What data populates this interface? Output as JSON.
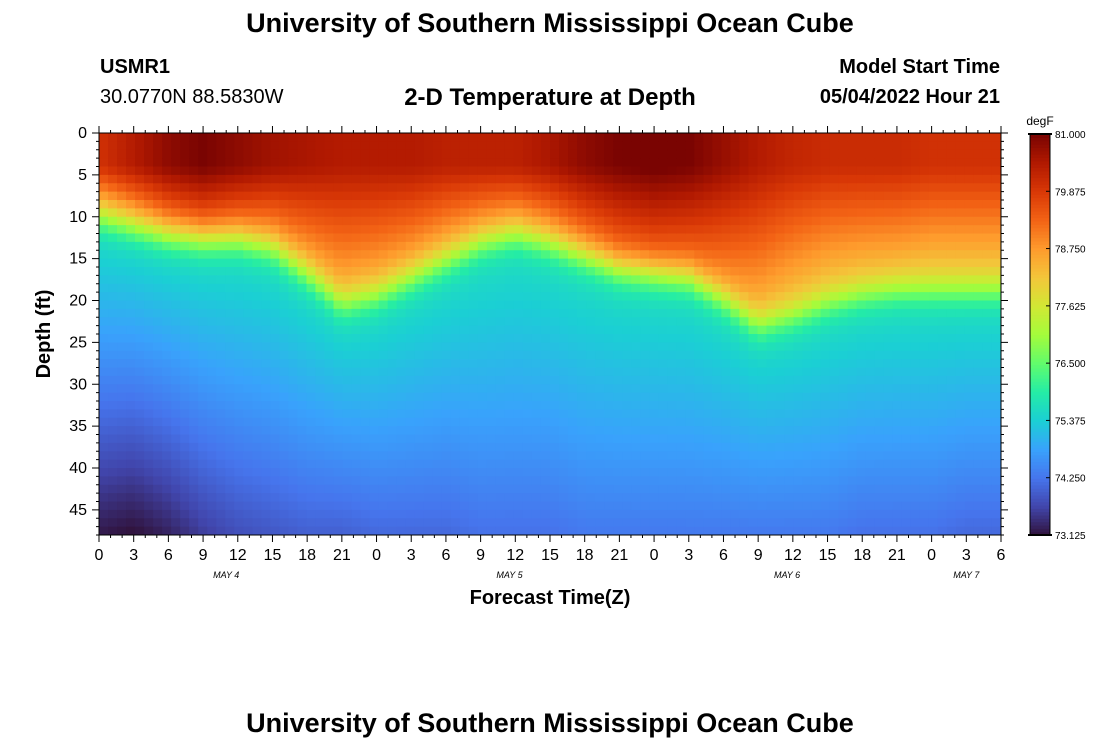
{
  "header": {
    "site_title": "University of Southern Mississippi Ocean Cube",
    "station_id": "USMR1",
    "station_coords": "30.0770N  88.5830W",
    "chart_title": "2-D Temperature at Depth",
    "start_label": "Model Start Time",
    "start_value": "05/04/2022 Hour 21"
  },
  "footer": {
    "site_title": "University of Southern Mississippi Ocean Cube"
  },
  "chart_data": {
    "type": "heatmap",
    "title": "2-D Temperature at Depth",
    "xlabel": "Forecast Time(Z)",
    "ylabel": "Depth (ft)",
    "x_range_hours": [
      0,
      78
    ],
    "y_range_ft": [
      0,
      48
    ],
    "x_tick_labels": [
      "0",
      "3",
      "6",
      "9",
      "12",
      "15",
      "18",
      "21",
      "0",
      "3",
      "6",
      "9",
      "12",
      "15",
      "18",
      "21",
      "0",
      "3",
      "6",
      "9",
      "12",
      "15",
      "18",
      "21",
      "0",
      "3",
      "6"
    ],
    "date_labels": [
      {
        "label": "MAY 4",
        "hour": 11
      },
      {
        "label": "MAY 5",
        "hour": 35.5
      },
      {
        "label": "MAY 6",
        "hour": 59.5
      },
      {
        "label": "MAY 7",
        "hour": 75
      }
    ],
    "y_ticks": [
      0,
      5,
      10,
      15,
      20,
      25,
      30,
      35,
      40,
      45
    ],
    "colorbar": {
      "units": "degF",
      "min": 73.125,
      "max": 81.0,
      "tick_labels": [
        "81.000",
        "79.875",
        "78.750",
        "77.625",
        "76.500",
        "75.375",
        "74.250",
        "73.125"
      ],
      "colors": [
        "#30123b",
        "#4145ab",
        "#4675ed",
        "#39a2fc",
        "#1bcfd4",
        "#24eca6",
        "#61fc6c",
        "#a4fc3b",
        "#d1e834",
        "#f3c63a",
        "#fe9b2d",
        "#f36315",
        "#d93806",
        "#b11901",
        "#7a0402"
      ]
    },
    "thermocline_depth_ft": {
      "hours": [
        0,
        3,
        6,
        9,
        12,
        15,
        18,
        21,
        24,
        27,
        30,
        33,
        36,
        39,
        42,
        45,
        48,
        51,
        54,
        57,
        60,
        63,
        66,
        69,
        72,
        75,
        78
      ],
      "values": [
        10.5,
        11.5,
        12.5,
        13,
        13,
        14,
        17,
        20.5,
        19.5,
        17.5,
        15.5,
        13.5,
        12.5,
        13.5,
        15,
        16.5,
        17,
        17.5,
        20,
        23,
        22,
        20.5,
        19.5,
        19,
        19,
        19,
        19
      ]
    },
    "surface_temperature_degF": {
      "hours": [
        0,
        3,
        6,
        9,
        12,
        15,
        18,
        21,
        24,
        27,
        30,
        33,
        36,
        39,
        42,
        45,
        48,
        51,
        54,
        57,
        60,
        63,
        66,
        69,
        72,
        75,
        78
      ],
      "values": [
        80.0,
        80.4,
        80.8,
        81.0,
        80.8,
        80.6,
        80.5,
        80.4,
        80.4,
        80.4,
        80.3,
        80.3,
        80.3,
        80.5,
        80.8,
        81.0,
        81.1,
        81.0,
        80.7,
        80.4,
        80.2,
        80.1,
        80.1,
        80.1,
        80.0,
        80.0,
        80.0
      ]
    },
    "deep_temperature_degF": {
      "hours": [
        0,
        3,
        6,
        9,
        12,
        15,
        18,
        21,
        24,
        27,
        30,
        33,
        36,
        39,
        42,
        45,
        48,
        51,
        54,
        57,
        60,
        63,
        66,
        69,
        72,
        75,
        78
      ],
      "values": [
        73.2,
        73.1,
        73.3,
        73.6,
        73.8,
        73.9,
        74.0,
        74.0,
        74.1,
        74.1,
        74.1,
        74.2,
        74.2,
        74.2,
        74.3,
        74.3,
        74.3,
        74.3,
        74.3,
        74.3,
        74.3,
        74.3,
        74.2,
        74.2,
        74.2,
        74.1,
        74.1
      ]
    }
  }
}
